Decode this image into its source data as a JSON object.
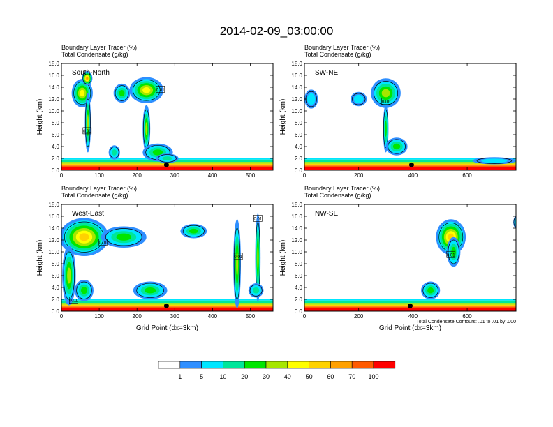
{
  "page": {
    "title": "2014-02-09_03:00:00"
  },
  "colors": [
    "#ffffff",
    "#2f8fff",
    "#00e6ff",
    "#00e69a",
    "#00e600",
    "#a6e600",
    "#ffff00",
    "#ffd200",
    "#ffa000",
    "#ff5a00",
    "#ff0000"
  ],
  "colorbar": {
    "labels": [
      "1",
      "5",
      "10",
      "20",
      "30",
      "40",
      "50",
      "60",
      "70",
      "100"
    ]
  },
  "note": "Total Condensate Contours: .01 to .01 by .000",
  "chart_data": [
    {
      "type": "heatmap",
      "label": "South-North",
      "title_line1": "Boundary Layer Tracer   (%)",
      "title_line2": "Total Condensate   (g/kg)",
      "xlabel": "",
      "ylabel": "Height (km)",
      "xlim": [
        0,
        560
      ],
      "ylim": [
        0,
        18
      ],
      "xticks": [
        0,
        100,
        200,
        300,
        400,
        500
      ],
      "yticks": [
        0.0,
        2.0,
        4.0,
        6.0,
        8.0,
        10.0,
        12.0,
        14.0,
        16.0,
        18.0
      ],
      "contour_labels": [
        {
          "x": 68,
          "y": 6.6,
          "text": "0.01"
        },
        {
          "x": 262,
          "y": 13.6,
          "text": "0.01"
        }
      ],
      "marker": {
        "x": 278,
        "y": 0.9
      },
      "blobs": [
        {
          "x": 55,
          "y": 13,
          "rx": 28,
          "ry": 2.4,
          "v": 6
        },
        {
          "x": 68,
          "y": 15.5,
          "rx": 14,
          "ry": 1.2,
          "v": 8
        },
        {
          "x": 70,
          "y": 8,
          "rx": 8,
          "ry": 5,
          "v": 5
        },
        {
          "x": 160,
          "y": 13,
          "rx": 22,
          "ry": 1.6,
          "v": 4
        },
        {
          "x": 225,
          "y": 13.5,
          "rx": 45,
          "ry": 2.2,
          "v": 6
        },
        {
          "x": 225,
          "y": 7,
          "rx": 10,
          "ry": 4,
          "v": 5
        },
        {
          "x": 255,
          "y": 3,
          "rx": 40,
          "ry": 1.5,
          "v": 4
        },
        {
          "x": 140,
          "y": 3,
          "rx": 15,
          "ry": 1.2,
          "v": 3
        },
        {
          "x": 280,
          "y": 2,
          "rx": 30,
          "ry": 0.8,
          "v": 3
        }
      ]
    },
    {
      "type": "heatmap",
      "label": "SW-NE",
      "title_line1": "Boundary Layer Tracer   (%)",
      "title_line2": "Total Condensate   (g/kg)",
      "xlabel": "",
      "ylabel": "Height (km)",
      "xlim": [
        0,
        780
      ],
      "ylim": [
        0,
        18
      ],
      "xticks": [
        0,
        200,
        400,
        600
      ],
      "yticks": [
        0.0,
        2.0,
        4.0,
        6.0,
        8.0,
        10.0,
        12.0,
        14.0,
        16.0,
        18.0
      ],
      "contour_labels": [
        {
          "x": 300,
          "y": 11.6,
          "text": "0.01"
        }
      ],
      "marker": {
        "x": 395,
        "y": 0.9
      },
      "blobs": [
        {
          "x": 25,
          "y": 12,
          "rx": 25,
          "ry": 1.6,
          "v": 2
        },
        {
          "x": 200,
          "y": 12,
          "rx": 30,
          "ry": 1.2,
          "v": 2
        },
        {
          "x": 300,
          "y": 13,
          "rx": 55,
          "ry": 2.5,
          "v": 5
        },
        {
          "x": 300,
          "y": 7,
          "rx": 10,
          "ry": 4,
          "v": 4
        },
        {
          "x": 340,
          "y": 4,
          "rx": 40,
          "ry": 1.5,
          "v": 4
        },
        {
          "x": 700,
          "y": 1.6,
          "rx": 80,
          "ry": 0.6,
          "v": 2
        }
      ]
    },
    {
      "type": "heatmap",
      "label": "West-East",
      "title_line1": "Boundary Layer Tracer   (%)",
      "title_line2": "Total Condensate   (g/kg)",
      "xlabel": "Grid Point (dx=3km)",
      "ylabel": "Height (km)",
      "xlim": [
        0,
        560
      ],
      "ylim": [
        0,
        18
      ],
      "xticks": [
        0,
        100,
        200,
        300,
        400,
        500
      ],
      "yticks": [
        0.0,
        2.0,
        4.0,
        6.0,
        8.0,
        10.0,
        12.0,
        14.0,
        16.0,
        18.0
      ],
      "contour_labels": [
        {
          "x": 110,
          "y": 11.6,
          "text": "0.01"
        },
        {
          "x": 468,
          "y": 9.2,
          "text": "0.01"
        },
        {
          "x": 520,
          "y": 15.6,
          "text": "0.01"
        },
        {
          "x": 32,
          "y": 1.8,
          "text": "0.01"
        }
      ],
      "marker": {
        "x": 278,
        "y": 0.9
      },
      "blobs": [
        {
          "x": 60,
          "y": 12.5,
          "rx": 65,
          "ry": 3.2,
          "v": 7
        },
        {
          "x": 165,
          "y": 12.5,
          "rx": 60,
          "ry": 1.8,
          "v": 4
        },
        {
          "x": 20,
          "y": 6,
          "rx": 18,
          "ry": 5,
          "v": 5
        },
        {
          "x": 60,
          "y": 3.5,
          "rx": 25,
          "ry": 1.8,
          "v": 4
        },
        {
          "x": 235,
          "y": 3.5,
          "rx": 45,
          "ry": 1.5,
          "v": 4
        },
        {
          "x": 350,
          "y": 13.5,
          "rx": 35,
          "ry": 1.2,
          "v": 4
        },
        {
          "x": 465,
          "y": 8,
          "rx": 10,
          "ry": 7.5,
          "v": 5
        },
        {
          "x": 520,
          "y": 9,
          "rx": 7,
          "ry": 7.5,
          "v": 5
        },
        {
          "x": 515,
          "y": 3.5,
          "rx": 20,
          "ry": 1.2,
          "v": 3
        }
      ]
    },
    {
      "type": "heatmap",
      "label": "NW-SE",
      "title_line1": "Boundary Layer Tracer   (%)",
      "title_line2": "Total Condensate   (g/kg)",
      "xlabel": "Grid Point (dx=3km)",
      "ylabel": "Height (km)",
      "xlim": [
        0,
        780
      ],
      "ylim": [
        0,
        18
      ],
      "xticks": [
        0,
        200,
        400,
        600
      ],
      "yticks": [
        0.0,
        2.0,
        4.0,
        6.0,
        8.0,
        10.0,
        12.0,
        14.0,
        16.0,
        18.0
      ],
      "contour_labels": [
        {
          "x": 540,
          "y": 9.5,
          "text": "0.01"
        }
      ],
      "marker": {
        "x": 390,
        "y": 0.9
      },
      "blobs": [
        {
          "x": 540,
          "y": 12.5,
          "rx": 55,
          "ry": 3,
          "v": 7
        },
        {
          "x": 550,
          "y": 10,
          "rx": 25,
          "ry": 2.5,
          "v": 4
        },
        {
          "x": 465,
          "y": 3.5,
          "rx": 35,
          "ry": 1.5,
          "v": 4
        },
        {
          "x": 780,
          "y": 15,
          "rx": 10,
          "ry": 1,
          "v": 2
        }
      ]
    }
  ]
}
